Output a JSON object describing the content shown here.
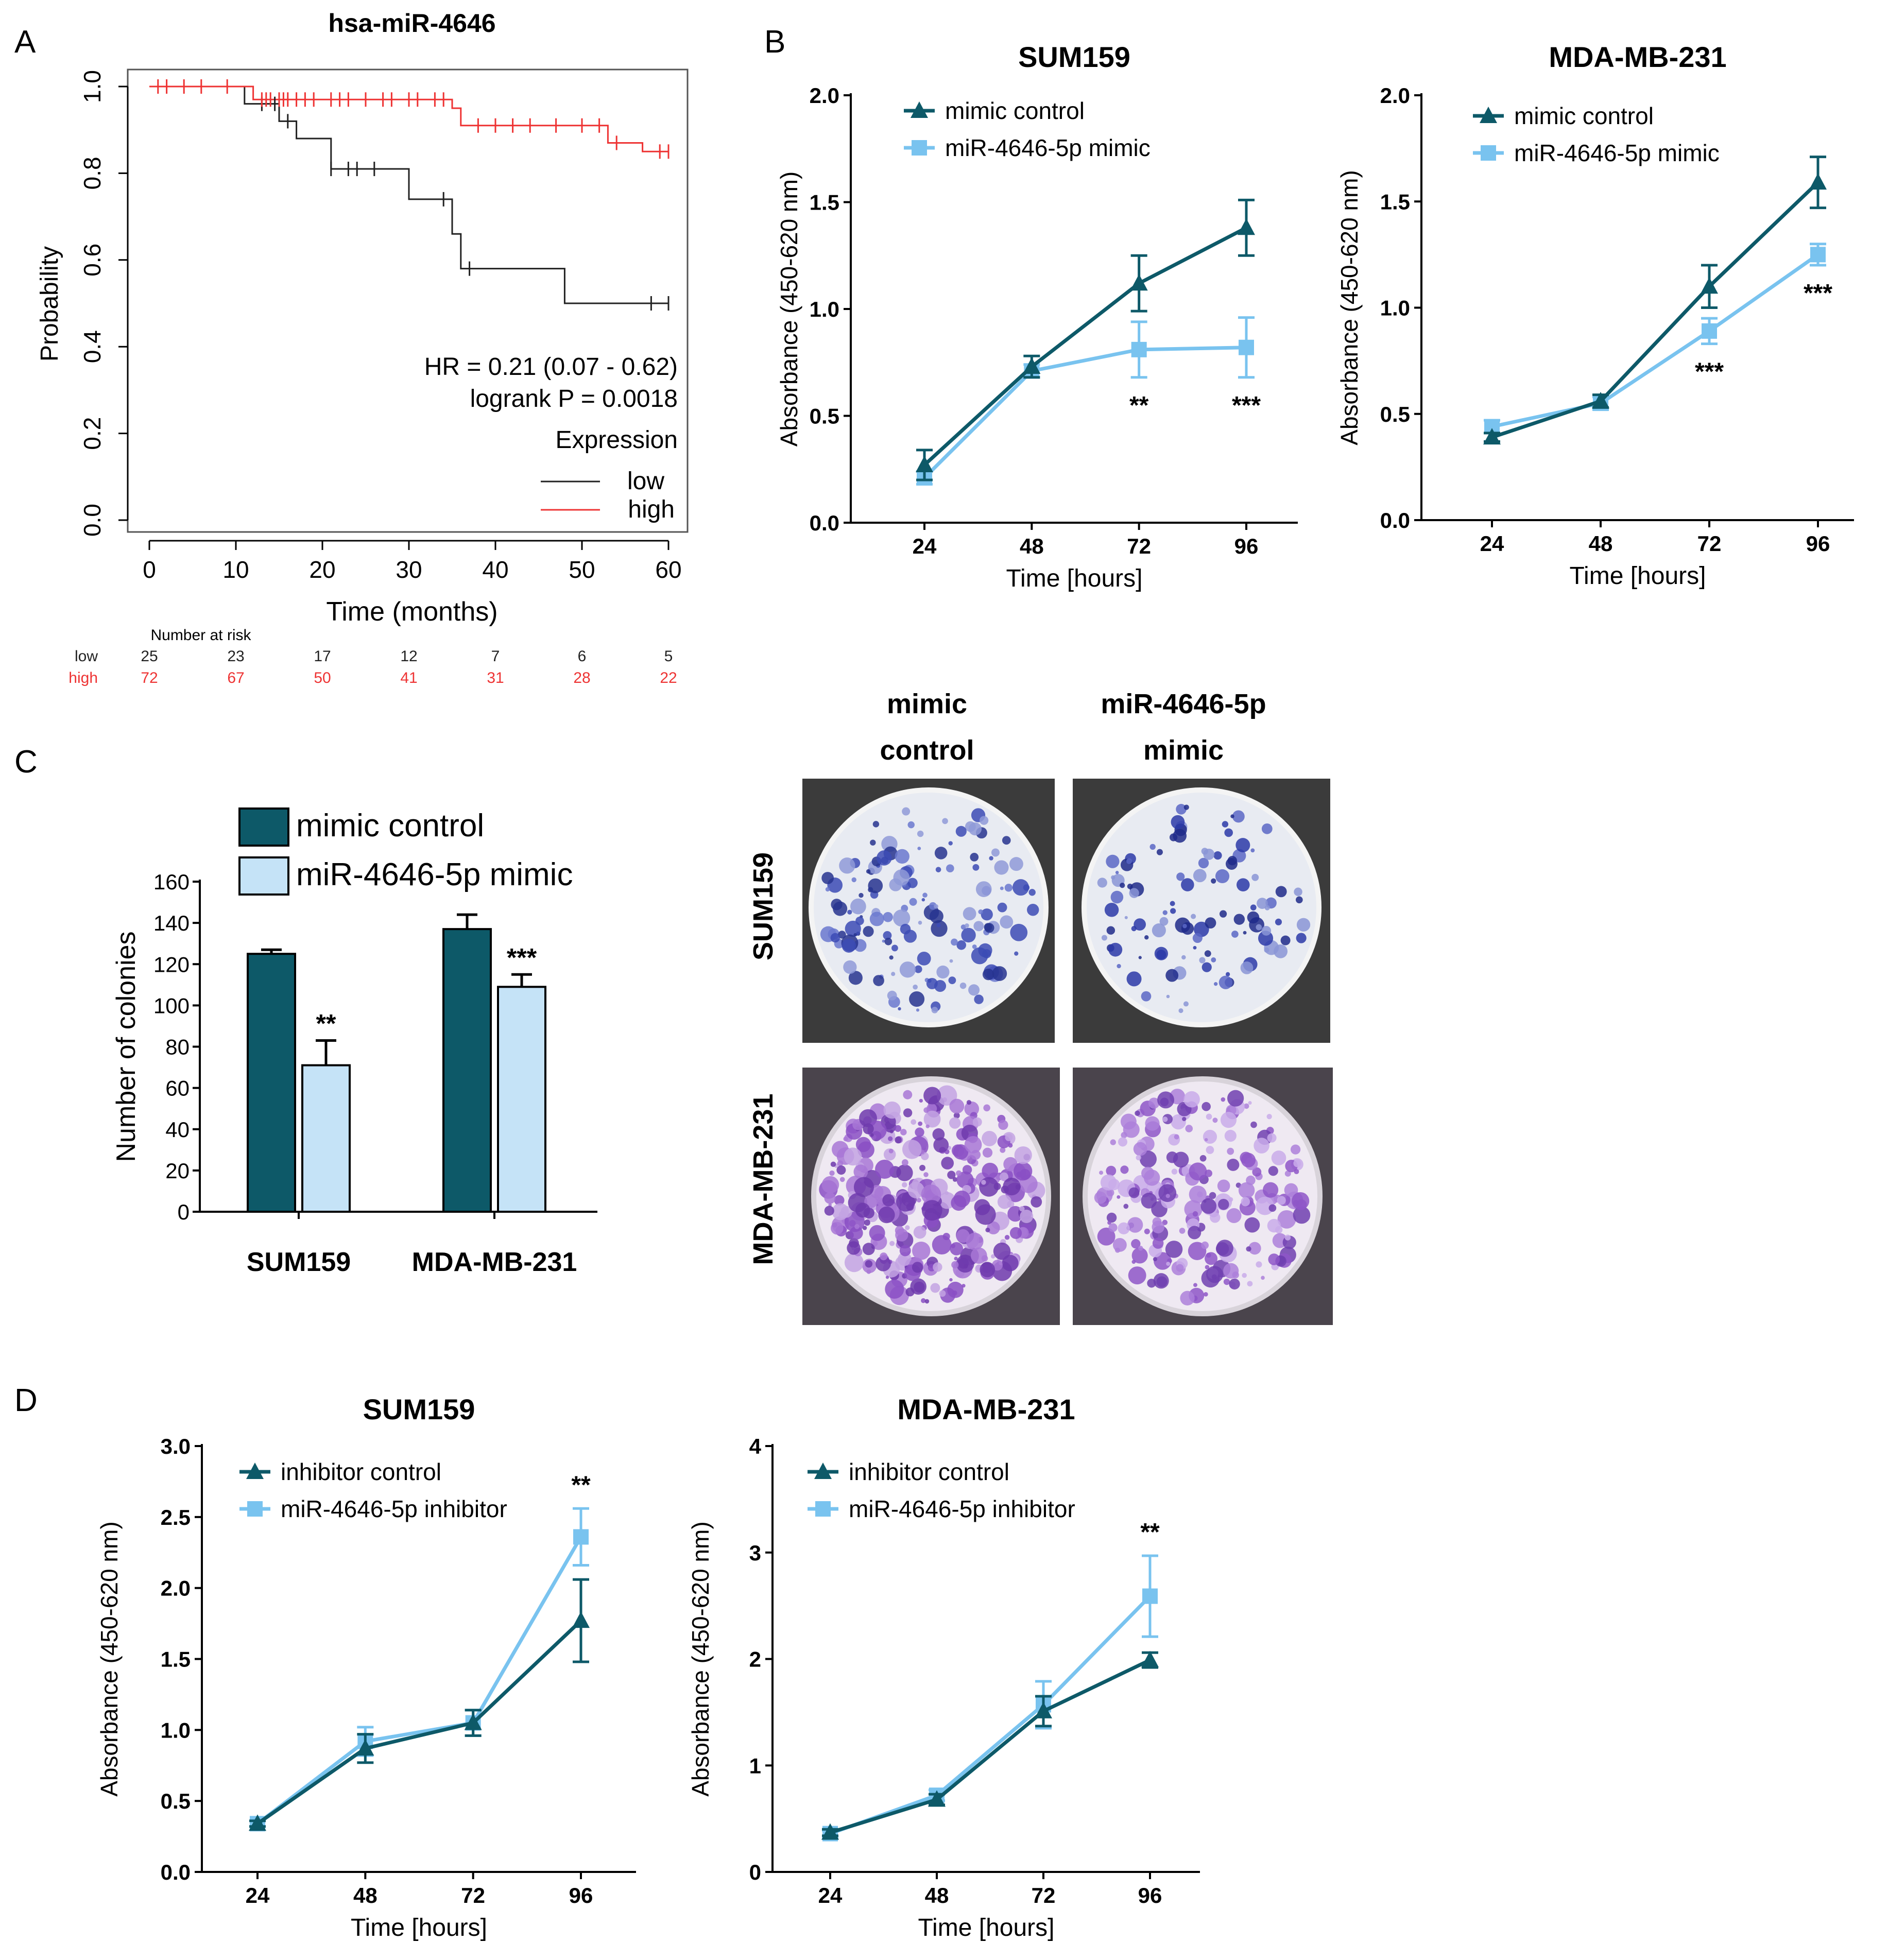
{
  "panel_labels": {
    "a": "A",
    "b": "B",
    "c": "C",
    "d": "D"
  },
  "colors": {
    "dark": "#0d5968",
    "light": "#79c3ef",
    "bar_light": "#c5e3f7",
    "km_low": "#222222",
    "km_high": "#ee3333",
    "axis": "#000000"
  },
  "km": {
    "title": "hsa-miR-4646",
    "ylabel": "Probability",
    "xlabel": "Time (months)",
    "hr_text": "HR = 0.21 (0.07 - 0.62)",
    "logrank_text": "logrank P = 0.0018",
    "legend_title": "Expression",
    "risk_title": "Number at risk",
    "xticks": [
      "0",
      "10",
      "20",
      "30",
      "40",
      "50",
      "60"
    ],
    "yticks": [
      "0.0",
      "0.2",
      "0.4",
      "0.6",
      "0.8",
      "1.0"
    ],
    "groups": [
      {
        "name": "low",
        "color": "#222222",
        "risk": [
          "25",
          "23",
          "17",
          "12",
          "7",
          "6",
          "5"
        ]
      },
      {
        "name": "high",
        "color": "#ee3333",
        "risk": [
          "72",
          "67",
          "50",
          "41",
          "31",
          "28",
          "22"
        ]
      }
    ]
  },
  "colony_images": {
    "col_headers": [
      [
        "mimic",
        "control"
      ],
      [
        "miR-4646-5p",
        "mimic"
      ]
    ],
    "row_labels": [
      "SUM159",
      "MDA-MB-231"
    ]
  },
  "chart_data": [
    {
      "id": "B-SUM159",
      "type": "line",
      "title": "SUM159",
      "xlabel": "Time [hours]",
      "ylabel": "Absorbance (450-620 nm)",
      "categories": [
        "24",
        "48",
        "72",
        "96"
      ],
      "ylim": [
        0,
        2.0
      ],
      "yticks": [
        "0.0",
        "0.5",
        "1.0",
        "1.5",
        "2.0"
      ],
      "series": [
        {
          "name": "mimic control",
          "marker": "triangle",
          "color": "#0d5968",
          "values": [
            0.27,
            0.73,
            1.12,
            1.38
          ],
          "errors": [
            0.07,
            0.05,
            0.13,
            0.13
          ]
        },
        {
          "name": "miR-4646-5p mimic",
          "marker": "square",
          "color": "#79c3ef",
          "values": [
            0.21,
            0.71,
            0.81,
            0.82
          ],
          "errors": [
            0.03,
            0.03,
            0.13,
            0.14
          ]
        }
      ],
      "annotations": [
        "",
        "",
        "**",
        "***"
      ]
    },
    {
      "id": "B-MDA-MB-231",
      "type": "line",
      "title": "MDA-MB-231",
      "xlabel": "Time [hours]",
      "ylabel": "Absorbance (450-620 nm)",
      "categories": [
        "24",
        "48",
        "72",
        "96"
      ],
      "ylim": [
        0,
        2.0
      ],
      "yticks": [
        "0.0",
        "0.5",
        "1.0",
        "1.5",
        "2.0"
      ],
      "series": [
        {
          "name": "mimic control",
          "marker": "triangle",
          "color": "#0d5968",
          "values": [
            0.39,
            0.56,
            1.1,
            1.59
          ],
          "errors": [
            0.02,
            0.03,
            0.1,
            0.12
          ]
        },
        {
          "name": "miR-4646-5p mimic",
          "marker": "square",
          "color": "#79c3ef",
          "values": [
            0.44,
            0.55,
            0.89,
            1.25
          ],
          "errors": [
            0.03,
            0.03,
            0.06,
            0.05
          ]
        }
      ],
      "annotations": [
        "",
        "",
        "***",
        "***"
      ]
    },
    {
      "id": "C-colonies",
      "type": "bar",
      "xlabel": "",
      "ylabel": "Number of colonies",
      "categories": [
        "SUM159",
        "MDA-MB-231"
      ],
      "ylim": [
        0,
        160
      ],
      "yticks": [
        "0",
        "20",
        "40",
        "60",
        "80",
        "100",
        "120",
        "140",
        "160"
      ],
      "series": [
        {
          "name": "mimic control",
          "color": "#0d5968",
          "values": [
            125,
            137
          ],
          "errors": [
            2,
            7
          ]
        },
        {
          "name": "miR-4646-5p mimic",
          "color": "#c5e3f7",
          "values": [
            71,
            109
          ],
          "errors": [
            12,
            6
          ]
        }
      ],
      "annotations": [
        "**",
        "***"
      ]
    },
    {
      "id": "D-SUM159",
      "type": "line",
      "title": "SUM159",
      "xlabel": "Time [hours]",
      "ylabel": "Absorbance (450-620 nm)",
      "categories": [
        "24",
        "48",
        "72",
        "96"
      ],
      "ylim": [
        0,
        3.0
      ],
      "yticks": [
        "0.0",
        "0.5",
        "1.0",
        "1.5",
        "2.0",
        "2.5",
        "3.0"
      ],
      "series": [
        {
          "name": "inhibitor control",
          "marker": "triangle",
          "color": "#0d5968",
          "values": [
            0.34,
            0.87,
            1.05,
            1.77
          ],
          "errors": [
            0.02,
            0.1,
            0.09,
            0.29
          ]
        },
        {
          "name": "miR-4646-5p inhibitor",
          "marker": "square",
          "color": "#79c3ef",
          "values": [
            0.34,
            0.92,
            1.05,
            2.36
          ],
          "errors": [
            0.02,
            0.1,
            0.09,
            0.2
          ]
        }
      ],
      "annotations": [
        "",
        "",
        "",
        "**"
      ]
    },
    {
      "id": "D-MDA-MB-231",
      "type": "line",
      "title": "MDA-MB-231",
      "xlabel": "Time [hours]",
      "ylabel": "Absorbance (450-620 nm)",
      "categories": [
        "24",
        "48",
        "72",
        "96"
      ],
      "ylim": [
        0,
        4
      ],
      "yticks": [
        "0",
        "1",
        "2",
        "3",
        "4"
      ],
      "series": [
        {
          "name": "inhibitor control",
          "marker": "triangle",
          "color": "#0d5968",
          "values": [
            0.37,
            0.68,
            1.51,
            1.99
          ],
          "errors": [
            0.03,
            0.05,
            0.14,
            0.07
          ]
        },
        {
          "name": "miR-4646-5p inhibitor",
          "marker": "square",
          "color": "#79c3ef",
          "values": [
            0.36,
            0.72,
            1.57,
            2.59
          ],
          "errors": [
            0.03,
            0.05,
            0.22,
            0.38
          ]
        }
      ],
      "annotations": [
        "",
        "",
        "",
        "**"
      ]
    }
  ]
}
